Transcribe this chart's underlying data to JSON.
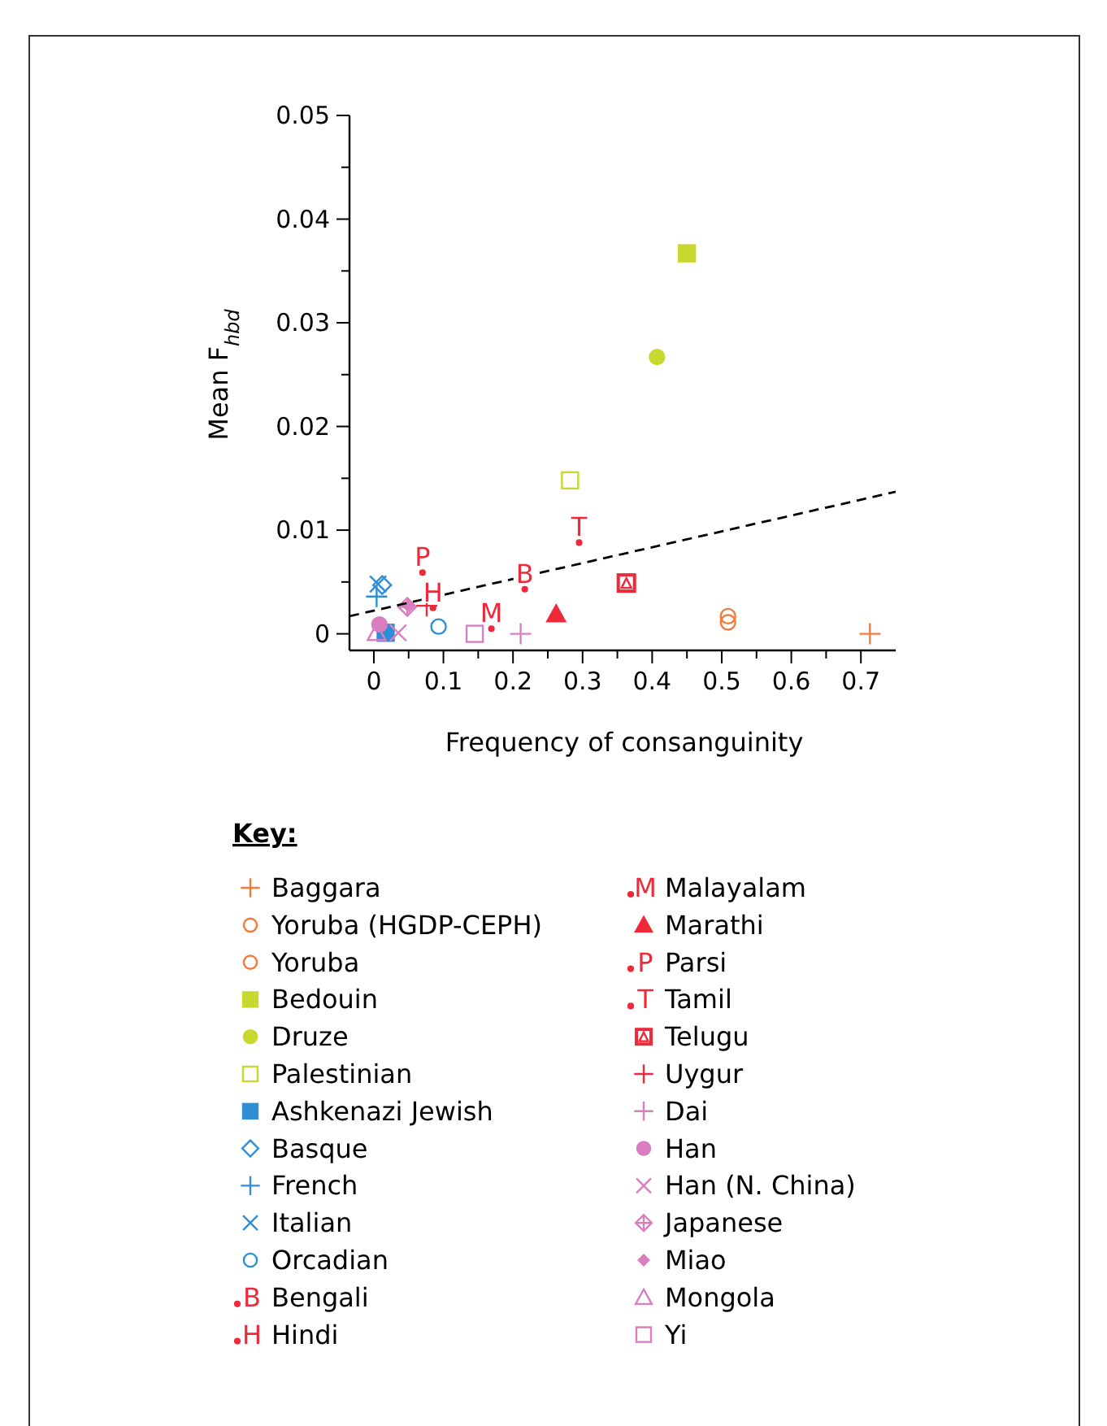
{
  "chart_data": {
    "type": "scatter",
    "xlabel": "Frequency of consanguinity",
    "ylabel": "Mean F$_{hbd}$",
    "legend_title": "Key:",
    "legend": "bottom",
    "grid": false,
    "xlim": [
      -0.035,
      0.75
    ],
    "ylim": [
      -0.0016,
      0.05
    ],
    "xticks": [
      0,
      {
        "value": 0.05,
        "label": null
      },
      0.1,
      {
        "value": 0.15,
        "label": null
      },
      0.2,
      {
        "value": 0.25,
        "label": null
      },
      0.3,
      {
        "value": 0.35,
        "label": null
      },
      0.4,
      {
        "value": 0.45,
        "label": null
      },
      0.5,
      {
        "value": 0.55,
        "label": null
      },
      0.6,
      {
        "value": 0.65,
        "label": null
      },
      0.7
    ],
    "yticks": [
      0,
      {
        "value": 0.005,
        "label": null
      },
      0.01,
      {
        "value": 0.015,
        "label": null
      },
      0.02,
      {
        "value": 0.025,
        "label": null
      },
      0.03,
      {
        "value": 0.035,
        "label": null
      },
      0.04,
      {
        "value": 0.045,
        "label": null
      },
      0.05
    ],
    "series": [
      {
        "name": "Baggara",
        "color": "#f47b3c",
        "marker": "plus",
        "x": [
          0.713
        ],
        "values": [
          0
        ]
      },
      {
        "name": "Yoruba (HGDP-CEPH)",
        "color": "#f47b3c",
        "marker": "circle-open",
        "x": [
          0.509
        ],
        "values": [
          0.0017
        ]
      },
      {
        "name": "Yoruba",
        "color": "#f47b3c",
        "marker": "circle-open",
        "x": [
          0.509
        ],
        "values": [
          0.0011
        ]
      },
      {
        "name": "Bedouin",
        "color": "#c8d82e",
        "marker": "square",
        "x": [
          0.45
        ],
        "values": [
          0.0367
        ]
      },
      {
        "name": "Druze",
        "color": "#c8d82e",
        "marker": "circle",
        "x": [
          0.407
        ],
        "values": [
          0.0267
        ]
      },
      {
        "name": "Palestinian",
        "color": "#c8d82e",
        "marker": "square-open",
        "x": [
          0.282
        ],
        "values": [
          0.0148
        ]
      },
      {
        "name": "Ashkenazi Jewish",
        "color": "#2e8fd6",
        "marker": "square",
        "x": [
          0.017
        ],
        "values": [
          0.0001
        ]
      },
      {
        "name": "Basque",
        "color": "#2e8fd6",
        "marker": "diamond-open",
        "x": [
          0.012
        ],
        "values": [
          0.0047
        ]
      },
      {
        "name": "French",
        "color": "#2e8fd6",
        "marker": "plus",
        "x": [
          0.004
        ],
        "values": [
          0.0036
        ]
      },
      {
        "name": "Italian",
        "color": "#2e8fd6",
        "marker": "cross",
        "x": [
          0.006
        ],
        "values": [
          0.0048
        ]
      },
      {
        "name": "Orcadian",
        "color": "#2e8fd6",
        "marker": "circle-open",
        "x": [
          0.093
        ],
        "values": [
          0.0007
        ]
      },
      {
        "name": "Bengali",
        "color": "#ee2a3a",
        "marker": "circle",
        "value_labels": [
          "B"
        ],
        "x": [
          0.217
        ],
        "values": [
          0.0043
        ]
      },
      {
        "name": "Hindi",
        "color": "#ee2a3a",
        "marker": "circle",
        "value_labels": [
          "H"
        ],
        "x": [
          0.085
        ],
        "values": [
          0.0025
        ]
      },
      {
        "name": "Malayalam",
        "color": "#ee2a3a",
        "marker": "circle",
        "value_labels": [
          "M"
        ],
        "x": [
          0.169
        ],
        "values": [
          0.0005
        ]
      },
      {
        "name": "Marathi",
        "color": "#ee2a3a",
        "marker": "triangle",
        "x": [
          0.262
        ],
        "values": [
          0.0019
        ]
      },
      {
        "name": "Parsi",
        "color": "#ee2a3a",
        "marker": "circle",
        "value_labels": [
          "P"
        ],
        "x": [
          0.07
        ],
        "values": [
          0.0059
        ]
      },
      {
        "name": "Tamil",
        "color": "#ee2a3a",
        "marker": "circle",
        "value_labels": [
          "T"
        ],
        "x": [
          0.295
        ],
        "values": [
          0.0088
        ]
      },
      {
        "name": "Telugu",
        "color": "#ee2a3a",
        "marker": "square-triangle",
        "x": [
          0.363
        ],
        "values": [
          0.0049
        ]
      },
      {
        "name": "Uygur",
        "color": "#ee2a3a",
        "marker": "plus",
        "x": [
          0.076
        ],
        "values": [
          0.0027
        ]
      },
      {
        "name": "Dai",
        "color": "#d97fc0",
        "marker": "plus",
        "x": [
          0.211
        ],
        "values": [
          0
        ]
      },
      {
        "name": "Han",
        "color": "#d97fc0",
        "marker": "circle",
        "x": [
          0.008
        ],
        "values": [
          0.0009
        ]
      },
      {
        "name": "Han (N. China)",
        "color": "#d97fc0",
        "marker": "cross",
        "x": [
          0.035
        ],
        "values": [
          0.0001
        ]
      },
      {
        "name": "Japanese",
        "color": "#d97fc0",
        "marker": "diamond-plus",
        "x": [
          0.048
        ],
        "values": [
          0.0026
        ]
      },
      {
        "name": "Miao",
        "color": "#d97fc0",
        "marker": "diamond",
        "x": [
          0.05
        ],
        "values": [
          0.0027
        ]
      },
      {
        "name": "Mongola",
        "color": "#d97fc0",
        "marker": "triangle-open",
        "x": [
          0.004
        ],
        "values": [
          0.0001
        ]
      },
      {
        "name": "Yi",
        "color": "#d97fc0",
        "marker": "square-open",
        "x": [
          0.145
        ],
        "values": [
          0
        ]
      },
      {
        "type": "line",
        "color": "#000000",
        "line_style": "dashed",
        "marker": "none",
        "x": [
          -0.035,
          0.75
        ],
        "values": [
          0.0017,
          0.0137
        ]
      }
    ]
  }
}
